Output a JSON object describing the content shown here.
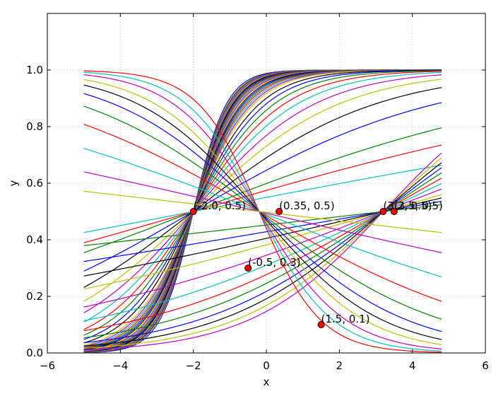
{
  "chart_data": {
    "type": "line",
    "title": "",
    "xlabel": "x",
    "ylabel": "y",
    "xlim": [
      -6,
      6
    ],
    "ylim": [
      0.0,
      1.2
    ],
    "grid": true,
    "x_range_of_curves": [
      -5,
      4.8
    ],
    "xticks": [
      {
        "v": -6,
        "label": "−6"
      },
      {
        "v": -4,
        "label": "−4"
      },
      {
        "v": -2,
        "label": "−2"
      },
      {
        "v": 0,
        "label": "0"
      },
      {
        "v": 2,
        "label": "2"
      },
      {
        "v": 4,
        "label": "4"
      },
      {
        "v": 6,
        "label": "6"
      }
    ],
    "yticks": [
      {
        "v": 0.0,
        "label": "0.0"
      },
      {
        "v": 0.2,
        "label": "0.2"
      },
      {
        "v": 0.4,
        "label": "0.4"
      },
      {
        "v": 0.6,
        "label": "0.6"
      },
      {
        "v": 0.8,
        "label": "0.8"
      },
      {
        "v": 1.0,
        "label": "1.0"
      }
    ],
    "series_model": "y = 1 / (1 + exp(-k * (x - x0)))",
    "color_cycle": [
      "#0000ff",
      "#008000",
      "#ff0000",
      "#00bfbf",
      "#bf00bf",
      "#bfbf00",
      "#000000"
    ],
    "series": [
      {
        "x0": -2.0,
        "k": 2.2
      },
      {
        "x0": -2.0,
        "k": 2.1
      },
      {
        "x0": -2.0,
        "k": 2.05
      },
      {
        "x0": -2.0,
        "k": 2.0
      },
      {
        "x0": -2.0,
        "k": 1.95
      },
      {
        "x0": -2.0,
        "k": 1.9
      },
      {
        "x0": -2.0,
        "k": 1.85
      },
      {
        "x0": -2.0,
        "k": 1.8
      },
      {
        "x0": -2.0,
        "k": 1.75
      },
      {
        "x0": -2.0,
        "k": 1.7
      },
      {
        "x0": -2.0,
        "k": 1.65
      },
      {
        "x0": -2.0,
        "k": 1.6
      },
      {
        "x0": -2.0,
        "k": 1.55
      },
      {
        "x0": -2.0,
        "k": 1.5
      },
      {
        "x0": -2.0,
        "k": 1.45
      },
      {
        "x0": -2.0,
        "k": 1.4
      },
      {
        "x0": -2.0,
        "k": 1.35
      },
      {
        "x0": -2.0,
        "k": 1.3
      },
      {
        "x0": -2.0,
        "k": 1.25
      },
      {
        "x0": -2.0,
        "k": 1.2
      },
      {
        "x0": -2.0,
        "k": 1.1
      },
      {
        "x0": -2.0,
        "k": 1.0
      },
      {
        "x0": -2.0,
        "k": 0.9
      },
      {
        "x0": -2.0,
        "k": 0.8
      },
      {
        "x0": -2.0,
        "k": 0.7
      },
      {
        "x0": -2.0,
        "k": 0.6
      },
      {
        "x0": -2.0,
        "k": 0.5
      },
      {
        "x0": -2.0,
        "k": 0.4
      },
      {
        "x0": -2.0,
        "k": 0.3
      },
      {
        "x0": -2.0,
        "k": 0.2
      },
      {
        "x0": -2.0,
        "k": 0.15
      },
      {
        "x0": -2.0,
        "k": 0.1
      },
      {
        "x0": 3.2,
        "k": 0.55
      },
      {
        "x0": 3.2,
        "k": 0.5
      },
      {
        "x0": 3.2,
        "k": 0.45
      },
      {
        "x0": 3.2,
        "k": 0.4
      },
      {
        "x0": 3.2,
        "k": 0.35
      },
      {
        "x0": 3.2,
        "k": 0.3
      },
      {
        "x0": 3.2,
        "k": 0.25
      },
      {
        "x0": 3.2,
        "k": 0.2
      },
      {
        "x0": 3.2,
        "k": 0.15
      },
      {
        "x0": 3.2,
        "k": 0.12
      },
      {
        "x0": 3.2,
        "k": 0.09
      },
      {
        "x0": 3.2,
        "k": 0.06
      },
      {
        "x0": -0.2,
        "k": -1.2
      },
      {
        "x0": -0.2,
        "k": -1.0
      },
      {
        "x0": -0.2,
        "k": -0.85
      },
      {
        "x0": -0.2,
        "k": -0.7
      },
      {
        "x0": -0.2,
        "k": -0.6
      },
      {
        "x0": -0.2,
        "k": -0.5
      },
      {
        "x0": -0.2,
        "k": -0.4
      },
      {
        "x0": -0.2,
        "k": -0.3
      },
      {
        "x0": -0.2,
        "k": -0.2
      },
      {
        "x0": -0.2,
        "k": -0.12
      },
      {
        "x0": -0.2,
        "k": -0.06
      }
    ],
    "annotations": [
      {
        "x": -2.0,
        "y": 0.5,
        "label": "(-2.0, 0.5)"
      },
      {
        "x": 0.35,
        "y": 0.5,
        "label": "(0.35, 0.5)"
      },
      {
        "x": 3.2,
        "y": 0.5,
        "label": "(3.2, 0.5)"
      },
      {
        "x": 3.5,
        "y": 0.5,
        "label": "(3.5, 0.5)"
      },
      {
        "x": -0.5,
        "y": 0.3,
        "label": "(-0.5, 0.3)"
      },
      {
        "x": 1.5,
        "y": 0.1,
        "label": "(1.5, 0.1)"
      }
    ],
    "marker_color": "#ff0000"
  }
}
